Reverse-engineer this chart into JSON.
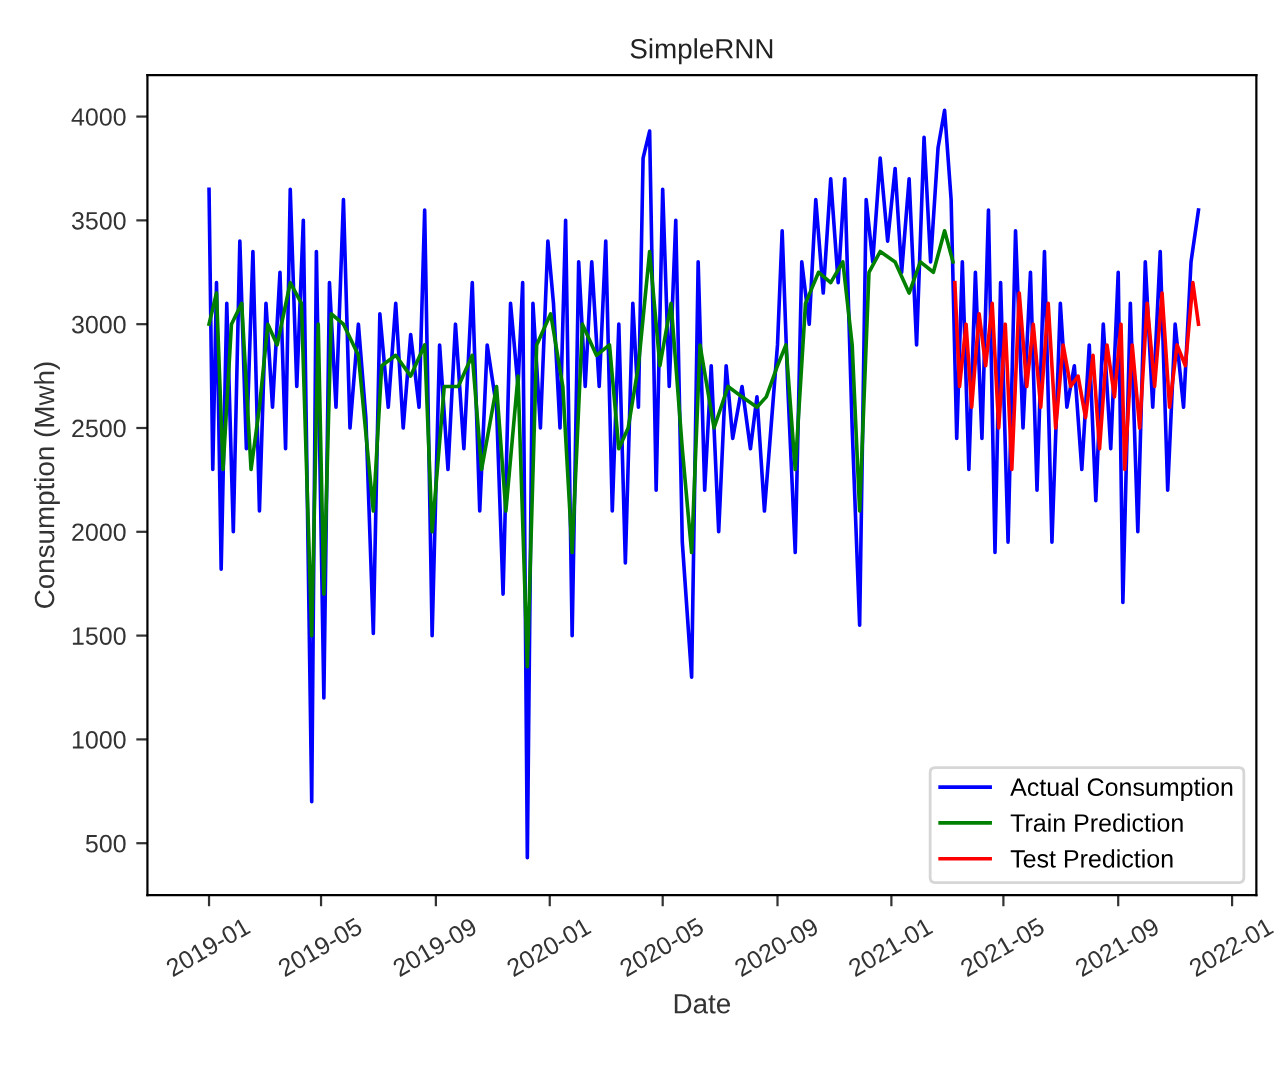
{
  "chart_data": {
    "type": "line",
    "title": "SimpleRNN",
    "xlabel": "Date",
    "ylabel": "Consumption (Mwh)",
    "xlim": [
      "2018-10-27",
      "2022-01-27"
    ],
    "ylim": [
      250,
      4200
    ],
    "xticks": [
      "2019-01",
      "2019-05",
      "2019-09",
      "2020-01",
      "2020-05",
      "2020-09",
      "2021-01",
      "2021-05",
      "2021-09",
      "2022-01"
    ],
    "yticks": [
      500,
      1000,
      1500,
      2000,
      2500,
      3000,
      3500,
      4000
    ],
    "legend": "bottom right",
    "grid": false,
    "marker": "none",
    "line_style": "solid",
    "series": [
      {
        "name": "Actual Consumption",
        "color": "#0000ff",
        "x": [
          "2019-01-01",
          "2019-01-05",
          "2019-01-09",
          "2019-01-14",
          "2019-01-20",
          "2019-01-27",
          "2019-02-03",
          "2019-02-10",
          "2019-02-17",
          "2019-02-24",
          "2019-03-03",
          "2019-03-10",
          "2019-03-18",
          "2019-03-24",
          "2019-03-29",
          "2019-04-05",
          "2019-04-12",
          "2019-04-21",
          "2019-04-26",
          "2019-05-04",
          "2019-05-10",
          "2019-05-17",
          "2019-05-25",
          "2019-06-01",
          "2019-06-10",
          "2019-06-18",
          "2019-06-26",
          "2019-07-03",
          "2019-07-12",
          "2019-07-20",
          "2019-07-28",
          "2019-08-05",
          "2019-08-14",
          "2019-08-20",
          "2019-08-28",
          "2019-09-05",
          "2019-09-14",
          "2019-09-22",
          "2019-10-01",
          "2019-10-10",
          "2019-10-18",
          "2019-10-26",
          "2019-11-05",
          "2019-11-12",
          "2019-11-20",
          "2019-11-28",
          "2019-12-03",
          "2019-12-08",
          "2019-12-14",
          "2019-12-22",
          "2019-12-30",
          "2020-01-05",
          "2020-01-12",
          "2020-01-18",
          "2020-01-25",
          "2020-02-01",
          "2020-02-08",
          "2020-02-15",
          "2020-02-23",
          "2020-03-01",
          "2020-03-08",
          "2020-03-15",
          "2020-03-22",
          "2020-03-30",
          "2020-04-05",
          "2020-04-10",
          "2020-04-17",
          "2020-04-24",
          "2020-05-01",
          "2020-05-08",
          "2020-05-15",
          "2020-05-22",
          "2020-06-01",
          "2020-06-08",
          "2020-06-15",
          "2020-06-22",
          "2020-06-30",
          "2020-07-08",
          "2020-07-15",
          "2020-07-25",
          "2020-08-03",
          "2020-08-10",
          "2020-08-18",
          "2020-08-25",
          "2020-09-01",
          "2020-09-06",
          "2020-09-12",
          "2020-09-20",
          "2020-09-27",
          "2020-10-05",
          "2020-10-12",
          "2020-10-20",
          "2020-10-28",
          "2020-11-05",
          "2020-11-12",
          "2020-11-20",
          "2020-11-28",
          "2020-12-05",
          "2020-12-12",
          "2020-12-20",
          "2020-12-28",
          "2021-01-05",
          "2021-01-12",
          "2021-01-20",
          "2021-01-28",
          "2021-02-05",
          "2021-02-12",
          "2021-02-20",
          "2021-02-27",
          "2021-03-06",
          "2021-03-12",
          "2021-03-18",
          "2021-03-25",
          "2021-04-01",
          "2021-04-08",
          "2021-04-15",
          "2021-04-22",
          "2021-04-28",
          "2021-05-06",
          "2021-05-14",
          "2021-05-22",
          "2021-05-30",
          "2021-06-06",
          "2021-06-14",
          "2021-06-22",
          "2021-07-01",
          "2021-07-08",
          "2021-07-16",
          "2021-07-24",
          "2021-08-01",
          "2021-08-08",
          "2021-08-16",
          "2021-08-24",
          "2021-09-01",
          "2021-09-06",
          "2021-09-14",
          "2021-09-22",
          "2021-09-30",
          "2021-10-08",
          "2021-10-16",
          "2021-10-24",
          "2021-11-01",
          "2021-11-10",
          "2021-11-18",
          "2021-11-26"
        ],
        "values": [
          3650,
          2300,
          3200,
          1820,
          3100,
          2000,
          3400,
          2400,
          3350,
          2100,
          3100,
          2600,
          3250,
          2400,
          3650,
          2700,
          3500,
          700,
          3350,
          1200,
          3200,
          2600,
          3600,
          2500,
          3000,
          2550,
          1510,
          3050,
          2600,
          3100,
          2500,
          2950,
          2600,
          3550,
          1500,
          2900,
          2300,
          3000,
          2400,
          3200,
          2100,
          2900,
          2600,
          1700,
          3100,
          2700,
          3200,
          430,
          3100,
          2500,
          3400,
          3100,
          2500,
          3500,
          1500,
          3300,
          2700,
          3300,
          2700,
          3400,
          2100,
          3000,
          1850,
          3100,
          2600,
          3800,
          3930,
          2200,
          3650,
          2700,
          3500,
          1950,
          1300,
          3300,
          2200,
          2800,
          2000,
          2800,
          2450,
          2700,
          2400,
          2650,
          2100,
          2500,
          2900,
          3450,
          2700,
          1900,
          3300,
          3000,
          3600,
          3150,
          3700,
          3200,
          3700,
          2500,
          1550,
          3600,
          3300,
          3800,
          3400,
          3750,
          3250,
          3700,
          2900,
          3900,
          3300,
          3850,
          4030,
          3600,
          2450,
          3300,
          2300,
          3250,
          2450,
          3550,
          1900,
          3200,
          1950,
          3450,
          2500,
          3250,
          2200,
          3350,
          1950,
          3100,
          2600,
          2800,
          2300,
          2900,
          2150,
          3000,
          2400,
          3250,
          1660,
          3100,
          2000,
          3300,
          2600,
          3350,
          2200,
          3000,
          2600,
          3300,
          3550
        ]
      },
      {
        "name": "Train Prediction",
        "color": "#008000",
        "x": [
          "2019-01-01",
          "2019-01-09",
          "2019-01-16",
          "2019-01-25",
          "2019-02-05",
          "2019-02-15",
          "2019-02-24",
          "2019-03-05",
          "2019-03-15",
          "2019-03-29",
          "2019-04-10",
          "2019-04-21",
          "2019-04-28",
          "2019-05-04",
          "2019-05-12",
          "2019-05-25",
          "2019-06-10",
          "2019-06-26",
          "2019-07-05",
          "2019-07-20",
          "2019-08-05",
          "2019-08-20",
          "2019-08-28",
          "2019-09-10",
          "2019-09-25",
          "2019-10-10",
          "2019-10-20",
          "2019-11-05",
          "2019-11-15",
          "2019-11-28",
          "2019-12-08",
          "2019-12-18",
          "2020-01-02",
          "2020-01-15",
          "2020-01-25",
          "2020-02-05",
          "2020-02-20",
          "2020-03-05",
          "2020-03-15",
          "2020-03-25",
          "2020-04-05",
          "2020-04-17",
          "2020-04-28",
          "2020-05-10",
          "2020-05-22",
          "2020-06-01",
          "2020-06-10",
          "2020-06-25",
          "2020-07-10",
          "2020-07-25",
          "2020-08-10",
          "2020-08-20",
          "2020-09-01",
          "2020-09-10",
          "2020-09-20",
          "2020-10-01",
          "2020-10-15",
          "2020-10-28",
          "2020-11-10",
          "2020-11-20",
          "2020-11-28",
          "2020-12-08",
          "2020-12-20",
          "2021-01-05",
          "2021-01-20",
          "2021-02-01",
          "2021-02-15",
          "2021-02-27",
          "2021-03-08"
        ],
        "values": [
          3000,
          3150,
          2300,
          3000,
          3100,
          2300,
          2600,
          3000,
          2900,
          3200,
          3100,
          1500,
          3000,
          1700,
          3050,
          3000,
          2850,
          2100,
          2800,
          2850,
          2750,
          2900,
          2000,
          2700,
          2700,
          2850,
          2300,
          2700,
          2100,
          2750,
          1350,
          2900,
          3050,
          2700,
          1900,
          3000,
          2850,
          2900,
          2400,
          2500,
          2800,
          3350,
          2800,
          3100,
          2400,
          1900,
          2900,
          2500,
          2700,
          2650,
          2600,
          2650,
          2800,
          2900,
          2300,
          3100,
          3250,
          3200,
          3300,
          2900,
          2100,
          3250,
          3350,
          3300,
          3150,
          3300,
          3250,
          3450,
          3300
        ]
      },
      {
        "name": "Test Prediction",
        "color": "#ff0000",
        "x": [
          "2021-03-10",
          "2021-03-15",
          "2021-03-22",
          "2021-03-28",
          "2021-04-05",
          "2021-04-12",
          "2021-04-19",
          "2021-04-26",
          "2021-05-03",
          "2021-05-10",
          "2021-05-18",
          "2021-05-26",
          "2021-06-02",
          "2021-06-10",
          "2021-06-18",
          "2021-06-26",
          "2021-07-04",
          "2021-07-12",
          "2021-07-20",
          "2021-07-28",
          "2021-08-05",
          "2021-08-12",
          "2021-08-20",
          "2021-08-28",
          "2021-09-04",
          "2021-09-08",
          "2021-09-16",
          "2021-09-24",
          "2021-10-02",
          "2021-10-10",
          "2021-10-18",
          "2021-10-26",
          "2021-11-03",
          "2021-11-12",
          "2021-11-20",
          "2021-11-26"
        ],
        "values": [
          3200,
          2700,
          3000,
          2600,
          3050,
          2800,
          3100,
          2500,
          3000,
          2300,
          3150,
          2700,
          3000,
          2600,
          3100,
          2500,
          2900,
          2700,
          2750,
          2550,
          2850,
          2400,
          2900,
          2650,
          3000,
          2300,
          2900,
          2500,
          3100,
          2700,
          3150,
          2600,
          2900,
          2800,
          3200,
          3000
        ]
      }
    ]
  }
}
